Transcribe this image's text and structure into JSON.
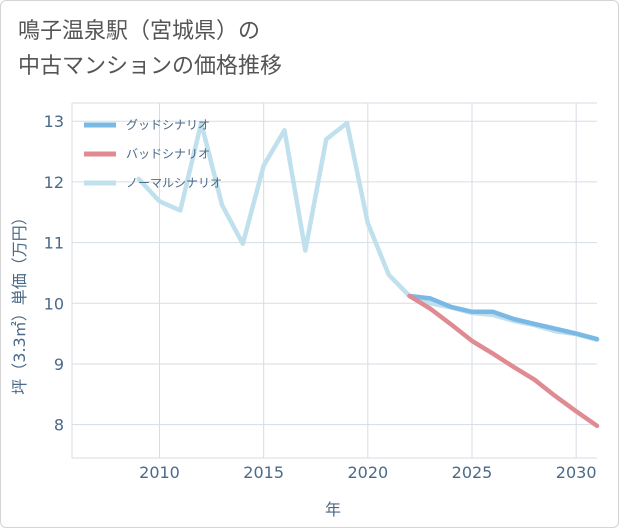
{
  "title_line1": "鳴子温泉駅（宮城県）の",
  "title_line2": "中古マンションの価格推移",
  "chart_data": {
    "type": "line",
    "xlabel": "年",
    "ylabel": "坪（3.3㎡）単価（万円）",
    "xlim": [
      2005.8,
      2031
    ],
    "ylim": [
      7.45,
      13.3
    ],
    "xticks": [
      2010,
      2015,
      2020,
      2025,
      2030
    ],
    "yticks": [
      8,
      9,
      10,
      11,
      12,
      13
    ],
    "grid": true,
    "legend_position": "top-left",
    "series": [
      {
        "name": "グッドシナリオ",
        "color": "#7ab9e5",
        "x": [
          2022,
          2023,
          2024,
          2025,
          2026,
          2027,
          2028,
          2029,
          2030,
          2031
        ],
        "y": [
          10.12,
          10.08,
          9.94,
          9.86,
          9.86,
          9.74,
          9.66,
          9.58,
          9.5,
          9.41
        ]
      },
      {
        "name": "バッドシナリオ",
        "color": "#e08a92",
        "x": [
          2022,
          2023,
          2024,
          2025,
          2026,
          2027,
          2028,
          2029,
          2030,
          2031
        ],
        "y": [
          10.12,
          9.91,
          9.65,
          9.38,
          9.17,
          8.95,
          8.74,
          8.47,
          8.22,
          7.98
        ]
      },
      {
        "name": "ノーマルシナリオ",
        "color": "#bfe0ec",
        "x": [
          2009,
          2010,
          2011,
          2012,
          2013,
          2014,
          2015,
          2016,
          2017,
          2018,
          2019,
          2020,
          2021,
          2022,
          2023,
          2024,
          2025,
          2026,
          2027,
          2028,
          2029,
          2030,
          2031
        ],
        "y": [
          12.05,
          11.68,
          11.53,
          12.97,
          11.62,
          10.98,
          12.27,
          12.85,
          10.87,
          12.7,
          12.97,
          11.32,
          10.47,
          10.12,
          10.0,
          9.93,
          9.84,
          9.81,
          9.71,
          9.64,
          9.54,
          9.49,
          9.4
        ]
      }
    ]
  }
}
